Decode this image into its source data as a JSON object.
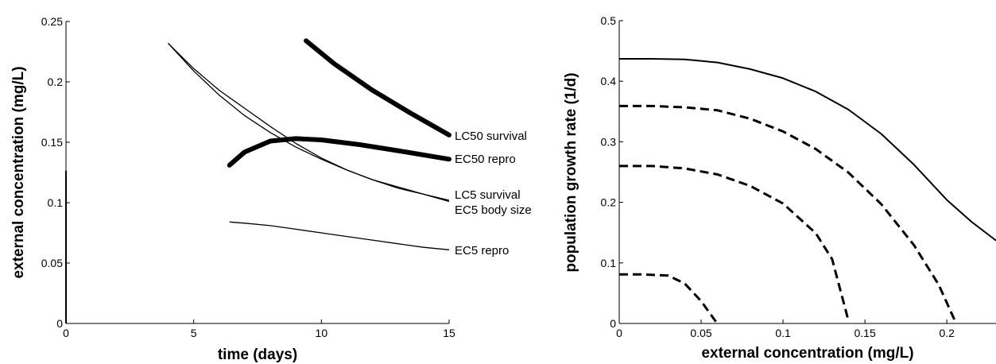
{
  "chart_data": [
    {
      "type": "line",
      "xlabel": "time (days)",
      "ylabel": "external concentration (mg/L)",
      "xlim": [
        0,
        15
      ],
      "ylim": [
        0,
        0.25
      ],
      "xticks": [
        0,
        5,
        10,
        15
      ],
      "xtick_labels": [
        "0",
        "5",
        "10",
        "15"
      ],
      "yticks": [
        0,
        0.05,
        0.1,
        0.15,
        0.2,
        0.25
      ],
      "ytick_labels": [
        "0",
        "0.05",
        "0.1",
        "0.15",
        "0.2",
        "0.25"
      ],
      "grid": false,
      "series": [
        {
          "name": "LC50 survival",
          "style": "thick",
          "points": [
            [
              9.4,
              0.234
            ],
            [
              10.5,
              0.215
            ],
            [
              12,
              0.193
            ],
            [
              13.5,
              0.174
            ],
            [
              15,
              0.156
            ]
          ]
        },
        {
          "name": "EC50 repro",
          "style": "thick",
          "points": [
            [
              6.4,
              0.131
            ],
            [
              7,
              0.142
            ],
            [
              8,
              0.151
            ],
            [
              9,
              0.153
            ],
            [
              10,
              0.152
            ],
            [
              11.5,
              0.148
            ],
            [
              13,
              0.143
            ],
            [
              15,
              0.136
            ]
          ]
        },
        {
          "name": "LC5 survival",
          "style": "thin",
          "points": [
            [
              4,
              0.232
            ],
            [
              5,
              0.211
            ],
            [
              6,
              0.193
            ],
            [
              7,
              0.178
            ],
            [
              8,
              0.163
            ],
            [
              9,
              0.149
            ],
            [
              10,
              0.137
            ],
            [
              11,
              0.127
            ],
            [
              12,
              0.119
            ],
            [
              13,
              0.112
            ],
            [
              14,
              0.107
            ],
            [
              15,
              0.101
            ]
          ]
        },
        {
          "name": "EC5 body size",
          "style": "thin",
          "points": [
            [
              4,
              0.232
            ],
            [
              5,
              0.209
            ],
            [
              6,
              0.189
            ],
            [
              7,
              0.172
            ],
            [
              8,
              0.158
            ],
            [
              9,
              0.146
            ],
            [
              10,
              0.136
            ],
            [
              11,
              0.127
            ],
            [
              12,
              0.119
            ],
            [
              13,
              0.113
            ],
            [
              14,
              0.107
            ],
            [
              15,
              0.102
            ]
          ]
        },
        {
          "name": "EC5 repro",
          "style": "thin",
          "points": [
            [
              6.4,
              0.084
            ],
            [
              7,
              0.083
            ],
            [
              8,
              0.081
            ],
            [
              9,
              0.078
            ],
            [
              10,
              0.075
            ],
            [
              11,
              0.072
            ],
            [
              12,
              0.069
            ],
            [
              13,
              0.066
            ],
            [
              14,
              0.063
            ],
            [
              15,
              0.061
            ]
          ]
        }
      ],
      "annotations": [
        "LC50 survival",
        "EC50 repro",
        "LC5 survival",
        "EC5 body size",
        "EC5 repro"
      ]
    },
    {
      "type": "line",
      "xlabel": "external concentration (mg/L)",
      "ylabel": "population growth rate (1/d)",
      "xlim": [
        0,
        0.23
      ],
      "ylim": [
        0,
        0.5
      ],
      "xticks": [
        0,
        0.05,
        0.1,
        0.15,
        0.2
      ],
      "xtick_labels": [
        "0",
        "0.05",
        "0.1",
        "0.15",
        "0.2"
      ],
      "yticks": [
        0,
        0.1,
        0.2,
        0.3,
        0.4,
        0.5
      ],
      "ytick_labels": [
        "0",
        "0.1",
        "0.2",
        "0.3",
        "0.4",
        "0.5"
      ],
      "grid": false,
      "series": [
        {
          "style": "solid",
          "points": [
            [
              0,
              0.437
            ],
            [
              0.02,
              0.437
            ],
            [
              0.04,
              0.436
            ],
            [
              0.06,
              0.431
            ],
            [
              0.08,
              0.42
            ],
            [
              0.1,
              0.405
            ],
            [
              0.12,
              0.383
            ],
            [
              0.14,
              0.353
            ],
            [
              0.16,
              0.313
            ],
            [
              0.18,
              0.262
            ],
            [
              0.2,
              0.204
            ],
            [
              0.215,
              0.168
            ],
            [
              0.23,
              0.137
            ]
          ]
        },
        {
          "style": "dashed",
          "points": [
            [
              0,
              0.359
            ],
            [
              0.02,
              0.359
            ],
            [
              0.04,
              0.357
            ],
            [
              0.06,
              0.352
            ],
            [
              0.08,
              0.338
            ],
            [
              0.1,
              0.317
            ],
            [
              0.12,
              0.288
            ],
            [
              0.14,
              0.249
            ],
            [
              0.16,
              0.197
            ],
            [
              0.18,
              0.129
            ],
            [
              0.195,
              0.064
            ],
            [
              0.205,
              0.004
            ]
          ]
        },
        {
          "style": "dashed",
          "points": [
            [
              0,
              0.26
            ],
            [
              0.02,
              0.26
            ],
            [
              0.04,
              0.256
            ],
            [
              0.06,
              0.246
            ],
            [
              0.08,
              0.227
            ],
            [
              0.1,
              0.198
            ],
            [
              0.12,
              0.149
            ],
            [
              0.13,
              0.106
            ],
            [
              0.14,
              0.004
            ]
          ]
        },
        {
          "style": "dashed",
          "points": [
            [
              0,
              0.081
            ],
            [
              0.015,
              0.081
            ],
            [
              0.03,
              0.079
            ],
            [
              0.04,
              0.066
            ],
            [
              0.05,
              0.037
            ],
            [
              0.059,
              0.003
            ]
          ]
        }
      ]
    }
  ]
}
